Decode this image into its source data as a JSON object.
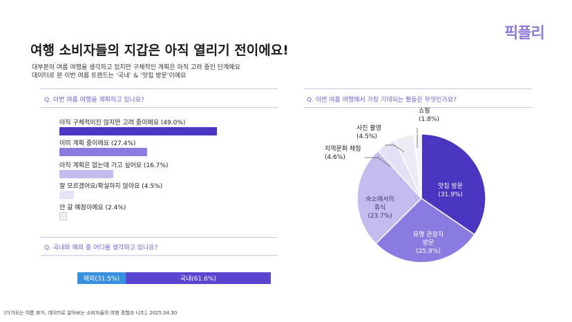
{
  "brand": {
    "logo": "픽플리"
  },
  "header": {
    "title": "여행 소비자들의 지갑은 아직 열리기 전이에요!",
    "subtitle_line1": "대부분이 여름 여행을 생각하고 있지만 구체적인 계획은 아직 고려 중인 단계예요",
    "subtitle_line2": "데이터로 본 이번 여름 트렌드는 ‘국내’ & ‘맛집 방문’이에요"
  },
  "questions": {
    "q1": "Q. 이번 여름 여행을 계획하고 있나요?",
    "q2": "Q. 국내와 해외 중 어디를 생각하고 있나요?",
    "q3": "Q. 이번 여름 여행에서 가장 기대되는 활동은 무엇인가요?"
  },
  "colors": {
    "dark": "#4a35c0",
    "mid": "#8a7be0",
    "light": "#c4bcee",
    "pale": "#e6e2f8",
    "neutral": "#eeeeee",
    "blue": "#3b8fe0"
  },
  "footer": "[다가오는 여름 휴가, 데이터로 알아보는 소비자들의 여행 경험과 니즈], 2025.04.30",
  "chart_data": [
    {
      "type": "bar",
      "categories": [
        "아직 구체적이진 않지만 고려 중이에요",
        "이미 계획 중이에요",
        "아직 계획은 없는데 가고 싶어요",
        "잘 모르겠어요/확실하지 않아요",
        "안 갈 예정이에요"
      ],
      "values": [
        49.0,
        27.4,
        16.7,
        4.5,
        2.4
      ],
      "labels": [
        "아직 구체적이진 않지만 고려 중이에요 (49.0%)",
        "이미 계획 중이에요 (27.4%)",
        "아직 계획은 없는데 가고 싶어요 (16.7%)",
        "잘 모르겠어요/확실하지 않아요 (4.5%)",
        "안 갈 예정이에요 (2.4%)"
      ],
      "colors": [
        "#4a35c0",
        "#8a7be0",
        "#c4bcee",
        "#e6e2f8",
        "#eeeeee"
      ]
    },
    {
      "type": "bar",
      "categories": [
        "해외",
        "국내"
      ],
      "values": [
        31.5,
        61.6
      ],
      "labels": [
        "해외(31.5%)",
        "국내(61.6%)"
      ],
      "colors": [
        "#3b8fe0",
        "#5a45d0"
      ]
    },
    {
      "type": "pie",
      "categories": [
        "맛집 방문",
        "유명 관광지 방문",
        "숙소에서의 휴식",
        "지역문화 체험",
        "사진 촬영",
        "쇼핑"
      ],
      "values": [
        31.9,
        25.9,
        23.7,
        4.6,
        4.5,
        1.8
      ],
      "labels": [
        {
          "line1": "맛집 방문",
          "line2": "(31.9%)"
        },
        {
          "line1": "유명 관광지",
          "line2": "방문",
          "line3": "(25.9%)"
        },
        {
          "line1": "숙소에서의",
          "line2": "휴식",
          "line3": "(23.7%)"
        },
        {
          "line1": "지역문화 체험",
          "line2": "(4.6%)"
        },
        {
          "line1": "사진 촬영",
          "line2": "(4.5%)"
        },
        {
          "line1": "쇼핑",
          "line2": "(1.8%)"
        }
      ],
      "colors": [
        "#4a35c0",
        "#8a7be0",
        "#c4bcee",
        "#e4e0f6",
        "#ecebf3",
        "#f5f5f5"
      ]
    }
  ]
}
